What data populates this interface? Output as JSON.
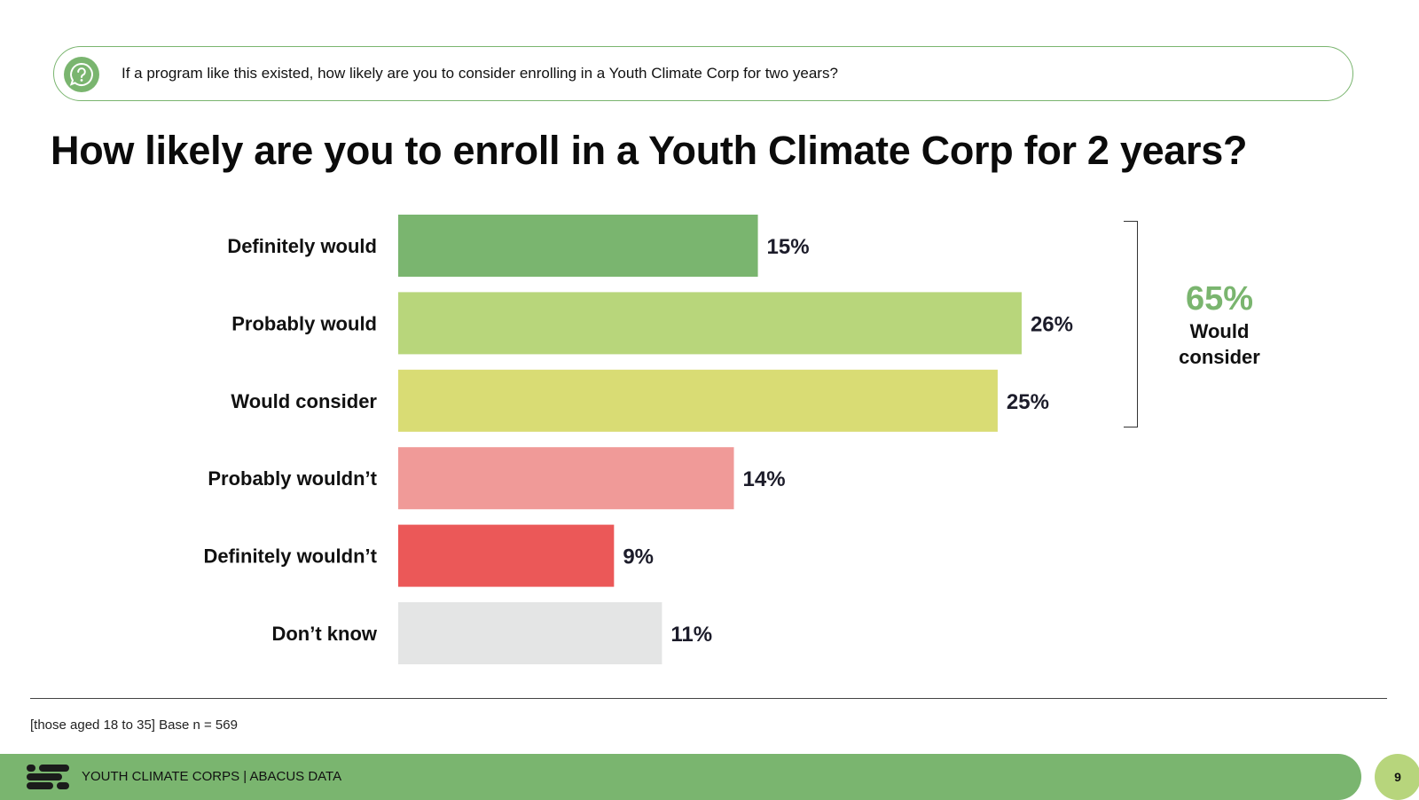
{
  "question": {
    "icon": "question-bubble-icon",
    "text": "If a program like this existed, how likely are you to consider enrolling in a Youth Climate Corp for two years?"
  },
  "title": "How likely are you to enroll in a Youth Climate Corp for 2 years?",
  "chart_data": {
    "type": "bar",
    "orientation": "horizontal",
    "title": "How likely are you to enroll in a Youth Climate Corp for 2 years?",
    "categories": [
      "Definitely would",
      "Probably would",
      "Would consider",
      "Probably wouldn’t",
      "Definitely wouldn’t",
      "Don’t know"
    ],
    "values": [
      15,
      26,
      25,
      14,
      9,
      11
    ],
    "value_labels": [
      "15%",
      "26%",
      "25%",
      "14%",
      "9%",
      "11%"
    ],
    "colors": [
      "#7ab56f",
      "#b8d67b",
      "#d9dc74",
      "#f09a98",
      "#eb5858",
      "#e4e5e5"
    ],
    "unit": "%",
    "xlim": [
      0,
      27
    ],
    "grid": false,
    "legend": "none",
    "annotation": {
      "value": "65%",
      "label": "Would consider",
      "spans_categories": [
        "Definitely would",
        "Probably would",
        "Would consider"
      ],
      "color": "#7ab56f"
    }
  },
  "footnote": "[those aged 18 to 35] Base n = 569",
  "footer": {
    "logo_icon": "abacus-logo-icon",
    "text": "YOUTH CLIMATE CORPS  |  ABACUS DATA",
    "page_number": "9"
  },
  "colors": {
    "accent_green": "#7ab56f",
    "page_badge": "#b7d57c",
    "text_dark": "#111111"
  }
}
